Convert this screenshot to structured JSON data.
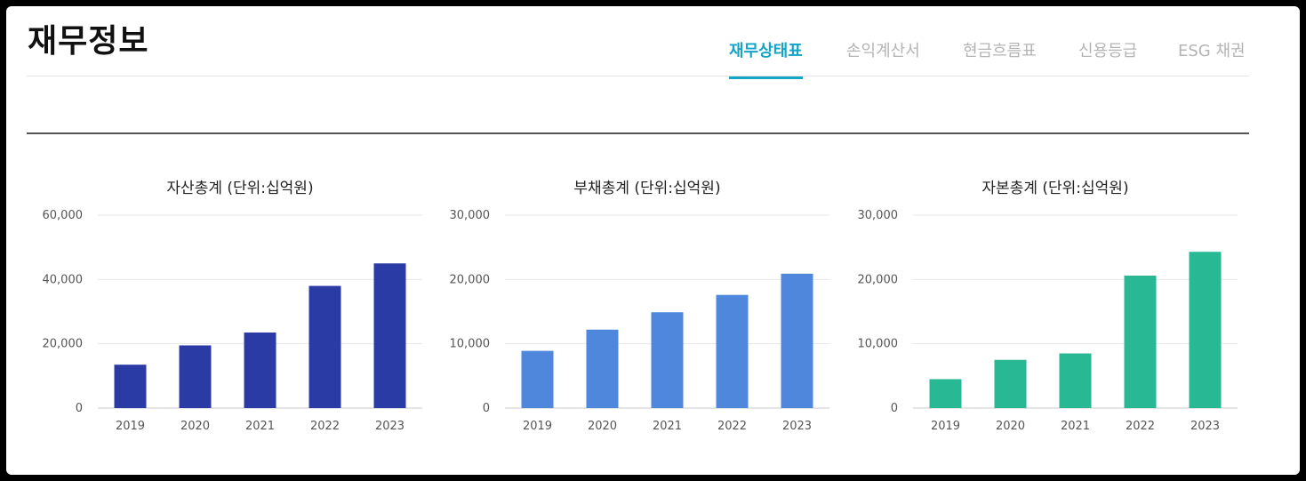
{
  "page": {
    "title": "재무정보"
  },
  "tabs": [
    {
      "label": "재무상태표",
      "active": true
    },
    {
      "label": "손익계산서",
      "active": false
    },
    {
      "label": "현금흐름표",
      "active": false
    },
    {
      "label": "신용등급",
      "active": false
    },
    {
      "label": "ESG 채권",
      "active": false
    }
  ],
  "chart_data": [
    {
      "type": "bar",
      "title": "자산총계 (단위:십억원)",
      "categories": [
        "2019",
        "2020",
        "2021",
        "2022",
        "2023"
      ],
      "values": [
        13500,
        19500,
        23500,
        38000,
        45000
      ],
      "ylim": [
        0,
        60000
      ],
      "yticks": [
        0,
        20000,
        40000,
        60000
      ],
      "ytick_labels": [
        "0",
        "20,000",
        "40,000",
        "60,000"
      ],
      "color": "#2b3ba6",
      "grid": true
    },
    {
      "type": "bar",
      "title": "부채총계 (단위:십억원)",
      "categories": [
        "2019",
        "2020",
        "2021",
        "2022",
        "2023"
      ],
      "values": [
        8900,
        12200,
        14900,
        17600,
        20900
      ],
      "ylim": [
        0,
        30000
      ],
      "yticks": [
        0,
        10000,
        20000,
        30000
      ],
      "ytick_labels": [
        "0",
        "10,000",
        "20,000",
        "30,000"
      ],
      "color": "#4f87dc",
      "grid": true
    },
    {
      "type": "bar",
      "title": "자본총계 (단위:십억원)",
      "categories": [
        "2019",
        "2020",
        "2021",
        "2022",
        "2023"
      ],
      "values": [
        4500,
        7500,
        8500,
        20600,
        24300
      ],
      "ylim": [
        0,
        30000
      ],
      "yticks": [
        0,
        10000,
        20000,
        30000
      ],
      "ytick_labels": [
        "0",
        "10,000",
        "20,000",
        "30,000"
      ],
      "color": "#28b894",
      "grid": true
    }
  ]
}
